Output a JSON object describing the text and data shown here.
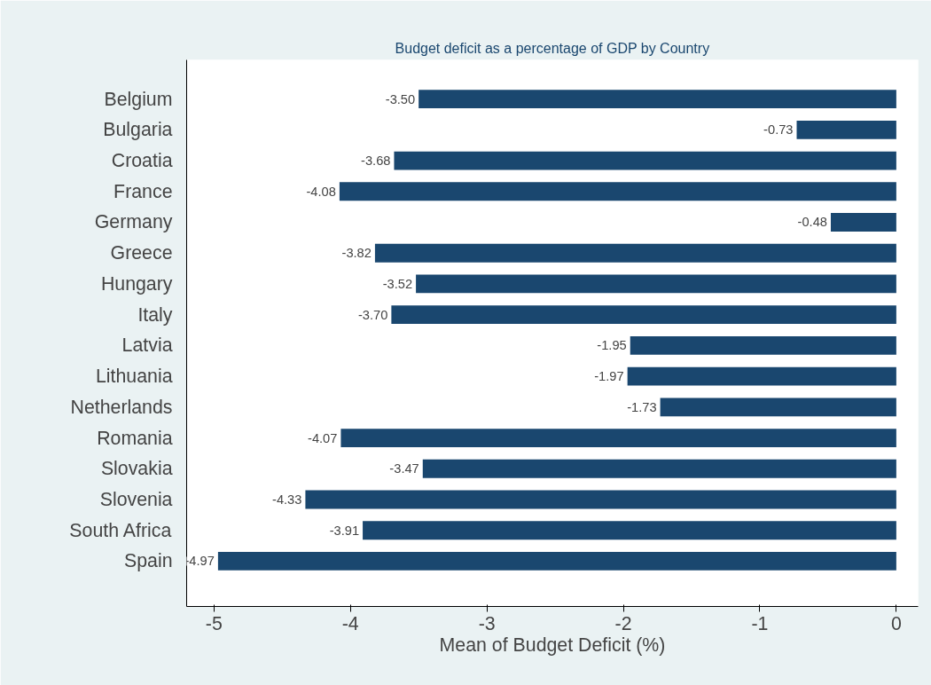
{
  "chart_data": {
    "type": "bar",
    "orientation": "horizontal",
    "title": "Budget deficit as a percentage of GDP by Country",
    "xlabel": "Mean of Budget Deficit (%)",
    "categories": [
      "Belgium",
      "Bulgaria",
      "Croatia",
      "France",
      "Germany",
      "Greece",
      "Hungary",
      "Italy",
      "Latvia",
      "Lithuania",
      "Netherlands",
      "Romania",
      "Slovakia",
      "Slovenia",
      "South Africa",
      "Spain"
    ],
    "values": [
      -3.5,
      -0.73,
      -3.68,
      -4.08,
      -0.48,
      -3.82,
      -3.52,
      -3.7,
      -1.95,
      -1.97,
      -1.73,
      -4.07,
      -3.47,
      -4.33,
      -3.91,
      -4.97
    ],
    "color": "#1a476f",
    "value_labels": [
      "-3.50",
      "-0.73",
      "-3.68",
      "-4.08",
      "-0.48",
      "-3.82",
      "-3.52",
      "-3.70",
      "-1.95",
      "-1.97",
      "-1.73",
      "-4.07",
      "-3.47",
      "-4.33",
      "-3.91",
      "-4.97"
    ],
    "xlim": [
      -5.2,
      0.16
    ],
    "xticks": [
      -5,
      -4,
      -3,
      -2,
      -1,
      0
    ],
    "grid": false
  }
}
